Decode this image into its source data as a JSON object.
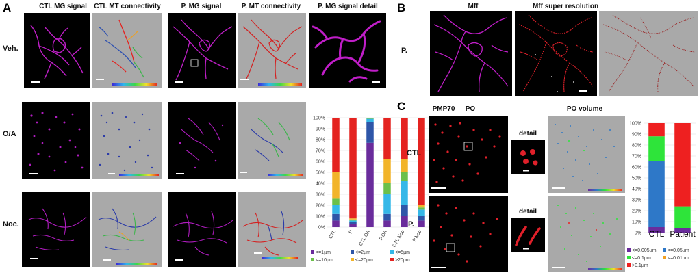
{
  "panels": {
    "A": {
      "letter": "A",
      "columns": [
        "CTL MG signal",
        "CTL MT connectivity",
        "P. MG signal",
        "P. MT connectivity",
        "P. MG signal detail"
      ],
      "rows": [
        "Veh.",
        "O/A",
        "Noc."
      ]
    },
    "B": {
      "letter": "B",
      "columns": [
        "Mff",
        "Mff super resolution"
      ],
      "row": "P."
    },
    "C": {
      "letter": "C",
      "header_left": "PMP70",
      "header_right": "PO",
      "header_volume": "PO volume",
      "rows": [
        "CTL",
        "P."
      ],
      "detail_label": "detail"
    }
  },
  "colors": {
    "magenta": "#c01ec8",
    "red_signal": "#e0202a",
    "grey_bg": "#a9a9a9",
    "black_bg": "#000000"
  },
  "chart_data": [
    {
      "type": "bar",
      "stacked": true,
      "ylim": [
        0,
        100
      ],
      "yticks": [
        "0%",
        "10%",
        "20%",
        "30%",
        "40%",
        "50%",
        "60%",
        "70%",
        "80%",
        "90%",
        "100%"
      ],
      "categories": [
        "CTL",
        "P",
        "CTL.OA",
        "P.OA",
        "CTL.Noc",
        "P.Noc"
      ],
      "series": [
        {
          "name": "<=1µm",
          "color": "#6a2c9c",
          "values": [
            6,
            3,
            77,
            6,
            10,
            6
          ]
        },
        {
          "name": "<=2µm",
          "color": "#2e56a8",
          "values": [
            6,
            2,
            19,
            6,
            10,
            4
          ]
        },
        {
          "name": "<=5µm",
          "color": "#35b8e8",
          "values": [
            8,
            1,
            3,
            18,
            22,
            6
          ]
        },
        {
          "name": "<=10µm",
          "color": "#6cc04a",
          "values": [
            6,
            1,
            1,
            10,
            8,
            2
          ]
        },
        {
          "name": "<=20µm",
          "color": "#f2b42a",
          "values": [
            24,
            1,
            0,
            22,
            12,
            2
          ]
        },
        {
          "name": ">20µm",
          "color": "#e42320",
          "values": [
            50,
            92,
            0,
            38,
            38,
            80
          ]
        }
      ]
    },
    {
      "type": "bar",
      "stacked": true,
      "ylim": [
        0,
        100
      ],
      "yticks": [
        "0%",
        "10%",
        "20%",
        "30%",
        "40%",
        "50%",
        "60%",
        "70%",
        "80%",
        "90%",
        "100%"
      ],
      "categories": [
        "CTL",
        "Patient"
      ],
      "series": [
        {
          "name": "<=0.005µm",
          "color": "#6a2c9c",
          "values": [
            5,
            4
          ]
        },
        {
          "name": "<=0.05µm",
          "color": "#2e78c8",
          "values": [
            60,
            0
          ]
        },
        {
          "name": "<=0.1µm",
          "color": "#2ee43a",
          "values": [
            23,
            20
          ]
        },
        {
          "name": "<=0.01µm",
          "color": "#f2a020",
          "values": [
            0,
            0
          ]
        },
        {
          "name": ">0.1µm",
          "color": "#ee2020",
          "values": [
            12,
            76
          ]
        }
      ]
    }
  ]
}
